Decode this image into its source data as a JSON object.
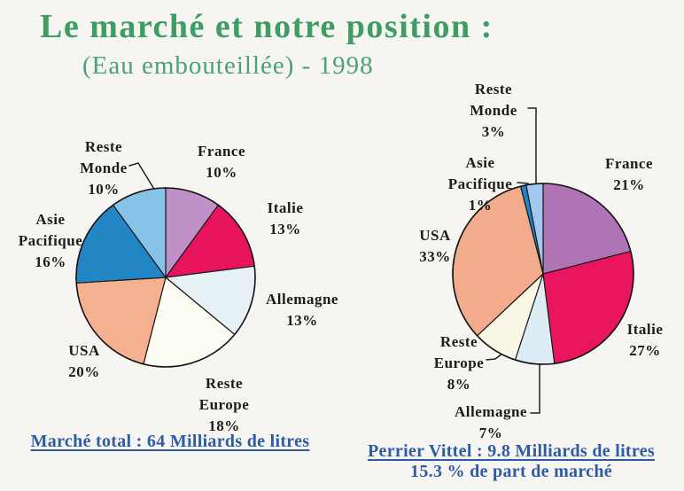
{
  "header": {
    "title": "Le marché et notre position :",
    "subtitle": "(Eau embouteillée) - 1998"
  },
  "colors": {
    "title_green": "#3d9d62",
    "caption_blue": "#2d5ca6",
    "label_black": "#1c1c1c"
  },
  "chart_data": [
    {
      "type": "pie",
      "caption": "Marché total : 64 Milliards de litres",
      "categories": [
        "France",
        "Italie",
        "Allemagne",
        "Reste Europe",
        "USA",
        "Asie Pacifique",
        "Reste Monde"
      ],
      "values": [
        10,
        13,
        13,
        18,
        20,
        16,
        10
      ],
      "unit": "%",
      "colors": [
        "#c091c6",
        "#e8145e",
        "#e6f1f6",
        "#fdfcf2",
        "#f5b08f",
        "#2285c4",
        "#87c3e9"
      ],
      "start_angle_deg": 0,
      "direction": "clockwise"
    },
    {
      "type": "pie",
      "caption": "Perrier Vittel : 9.8 Milliards de litres",
      "subcaption": "15.3 % de part de marché",
      "categories": [
        "France",
        "Italie",
        "Allemagne",
        "Reste Europe",
        "USA",
        "Asie Pacifique",
        "Reste Monde"
      ],
      "values": [
        21,
        27,
        7,
        8,
        33,
        1,
        3
      ],
      "unit": "%",
      "colors": [
        "#af74b4",
        "#e9155f",
        "#ddedf5",
        "#faf6e6",
        "#f2ab8b",
        "#1987c9",
        "#a3c7ef"
      ],
      "start_angle_deg": 0,
      "direction": "clockwise"
    }
  ],
  "pies": {
    "left": {
      "labels": {
        "france": "France\n10%",
        "italie": "Italie\n13%",
        "allemagne": "Allemagne\n13%",
        "reste_europe": "Reste\nEurope\n18%",
        "usa": "USA\n20%",
        "asie_pacifique": "Asie\nPacifique\n16%",
        "reste_monde": "Reste\nMonde\n10%"
      },
      "caption": "Marché total : 64 Milliards de litres"
    },
    "right": {
      "labels": {
        "france": "France\n21%",
        "italie": "Italie\n27%",
        "allemagne": "Allemagne\n7%",
        "reste_europe": "Reste\nEurope\n8%",
        "usa": "USA\n33%",
        "asie_pacifique": "Asie\nPacifique\n1%",
        "reste_monde": "Reste\nMonde\n3%"
      },
      "caption_line1": "Perrier Vittel : 9.8 Milliards de litres",
      "caption_line2": "15.3 % de part de marché"
    }
  }
}
